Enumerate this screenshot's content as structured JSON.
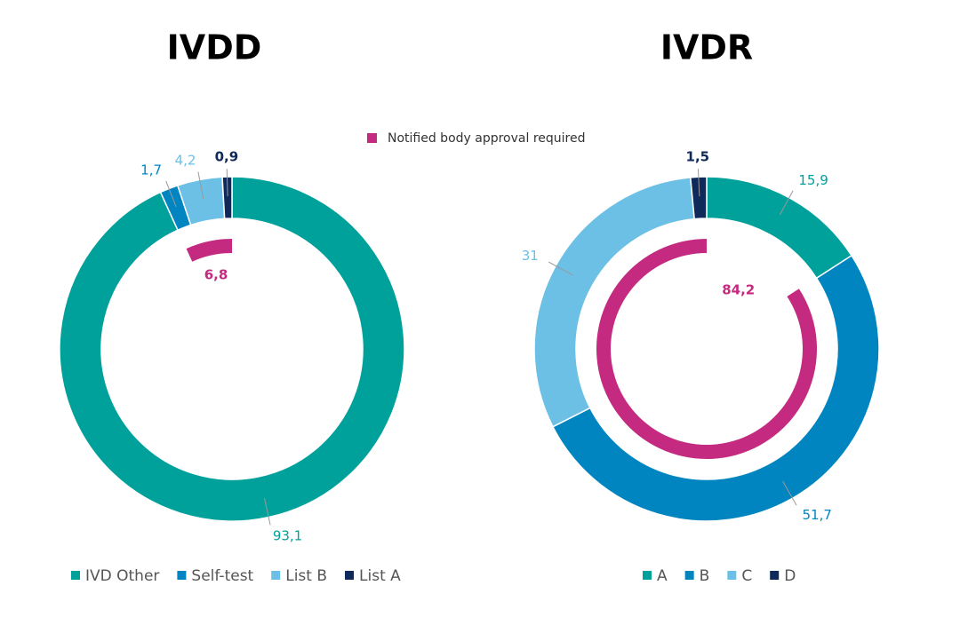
{
  "shared_legend": {
    "name": "Notified body approval required",
    "color": "#c42b80"
  },
  "chart_data": [
    {
      "type": "donut",
      "title": "IVDD",
      "categories": [
        "IVD Other",
        "Self-test",
        "List B",
        "List A"
      ],
      "values": [
        93.1,
        1.7,
        4.2,
        0.9
      ],
      "value_labels": [
        "93,1",
        "1,7",
        "4,2",
        "0,9"
      ],
      "colors": [
        "#00a19a",
        "#0085c0",
        "#6cc0e5",
        "#0f2a5a"
      ],
      "inner": {
        "value": 6.8,
        "value_label": "6,8"
      }
    },
    {
      "type": "donut",
      "title": "IVDR",
      "categories": [
        "A",
        "B",
        "C",
        "D"
      ],
      "values": [
        15.9,
        51.7,
        31,
        1.5
      ],
      "value_labels": [
        "15,9",
        "51,7",
        "31",
        "1,5"
      ],
      "colors": [
        "#00a19a",
        "#0085c0",
        "#6cc0e5",
        "#0f2a5a"
      ],
      "inner": {
        "value": 84.2,
        "value_label": "84,2"
      }
    }
  ]
}
